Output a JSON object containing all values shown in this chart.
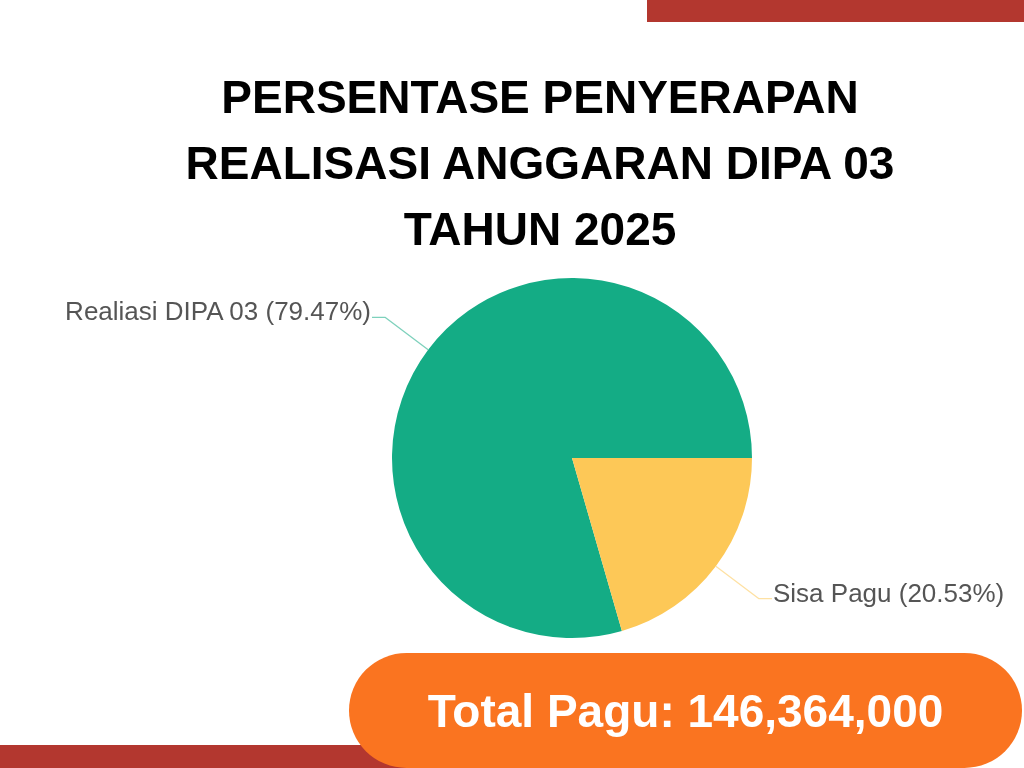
{
  "chart_data": {
    "type": "pie",
    "title": "PERSENTASE PENYERAPAN REALISASI ANGGARAN DIPA 03 TAHUN 2025",
    "categories": [
      "Realiasi DIPA 03",
      "Sisa Pagu"
    ],
    "values": [
      79.47,
      20.53
    ],
    "colors": [
      "#14ac85",
      "#fdc857"
    ],
    "value_labels": [
      "(79.47%)",
      "(20.53%)"
    ],
    "annotations": [
      "Total Pagu: 146,364,000"
    ],
    "legend": false
  }
}
